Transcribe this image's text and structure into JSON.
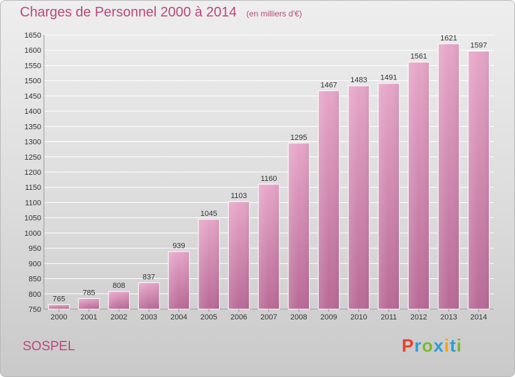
{
  "header": {
    "title": "Charges de Personnel 2000 à 2014",
    "subtitle": "(en milliers d'€)"
  },
  "footer": {
    "commune": "SOSPEL"
  },
  "logo": {
    "letters": [
      "P",
      "r",
      "o",
      "x",
      "i",
      "t",
      "i"
    ],
    "colors": [
      "#e8402a",
      "#2b9fd8",
      "#7cb82f",
      "#2b9fd8",
      "#f6a01a",
      "#2b9fd8",
      "#7cb82f"
    ]
  },
  "chart_data": {
    "type": "bar",
    "categories": [
      "2000",
      "2001",
      "2002",
      "2003",
      "2004",
      "2005",
      "2006",
      "2007",
      "2008",
      "2009",
      "2010",
      "2011",
      "2012",
      "2013",
      "2014"
    ],
    "values": [
      765,
      785,
      808,
      837,
      939,
      1045,
      1103,
      1160,
      1295,
      1467,
      1483,
      1491,
      1561,
      1621,
      1597
    ],
    "ylim": [
      750,
      1650
    ],
    "yticks": [
      750,
      800,
      850,
      900,
      950,
      1000,
      1050,
      1100,
      1150,
      1200,
      1250,
      1300,
      1350,
      1400,
      1450,
      1500,
      1550,
      1600,
      1650
    ],
    "grid": true,
    "bar_color": "#c8689c",
    "xlabel": "",
    "ylabel": ""
  }
}
